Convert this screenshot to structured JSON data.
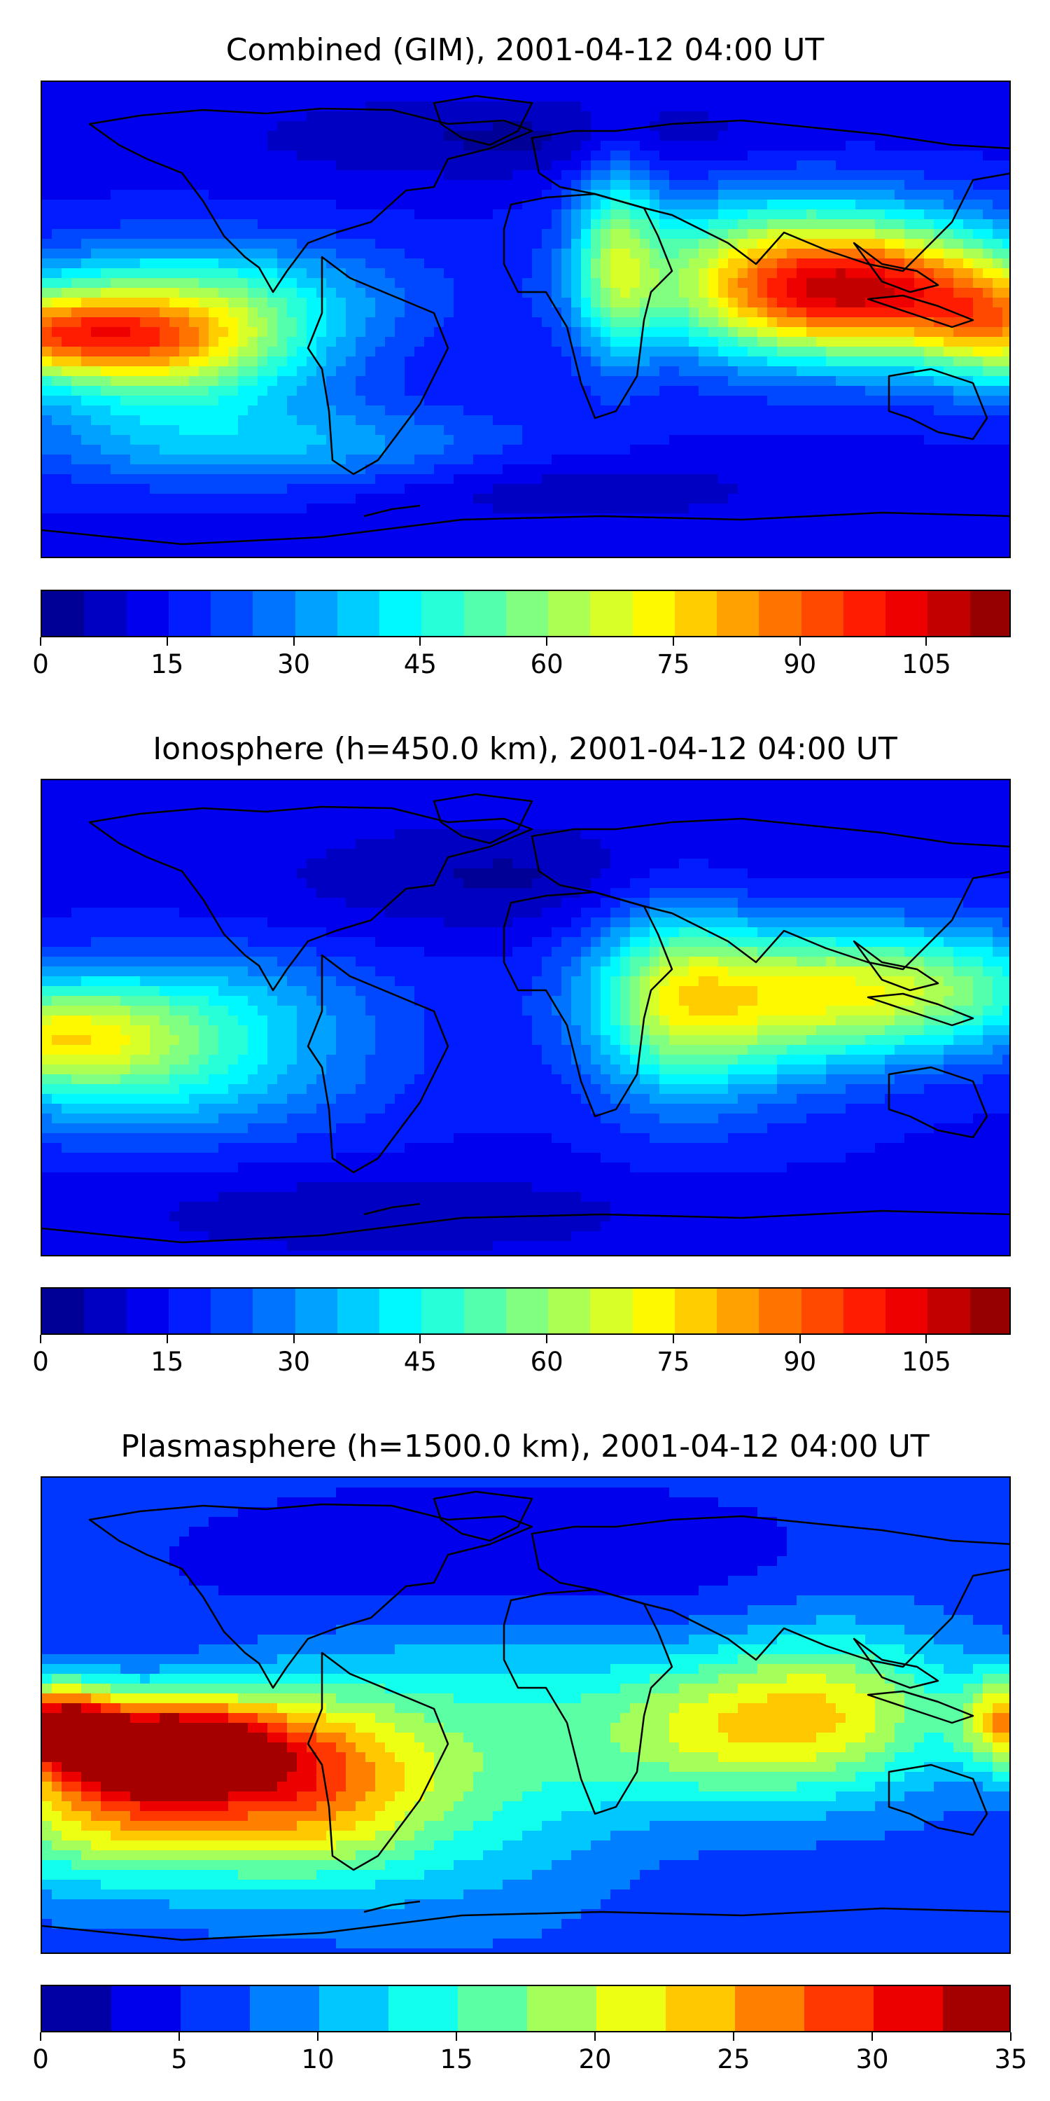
{
  "panels": [
    {
      "title": "Combined (GIM), 2001-04-12 04:00 UT",
      "colorbar": {
        "min": 0,
        "max": 115,
        "step": 5,
        "ticks": [
          "0",
          "15",
          "30",
          "45",
          "60",
          "75",
          "90",
          "105"
        ],
        "tick_values": [
          0,
          15,
          30,
          45,
          60,
          75,
          90,
          105
        ]
      }
    },
    {
      "title": "Ionosphere  (h=450.0 km), 2001-04-12 04:00 UT",
      "colorbar": {
        "min": 0,
        "max": 115,
        "step": 5,
        "ticks": [
          "0",
          "15",
          "30",
          "45",
          "60",
          "75",
          "90",
          "105"
        ],
        "tick_values": [
          0,
          15,
          30,
          45,
          60,
          75,
          90,
          105
        ]
      }
    },
    {
      "title": "Plasmasphere (h=1500.0 km), 2001-04-12 04:00 UT",
      "colorbar": {
        "min": 0,
        "max": 35,
        "step": 2.5,
        "ticks": [
          "0",
          "5",
          "10",
          "15",
          "20",
          "25",
          "30",
          "35"
        ],
        "tick_values": [
          0,
          5,
          10,
          15,
          20,
          25,
          30,
          35
        ]
      }
    }
  ],
  "colormap": "jet",
  "base_map": "world coastlines"
}
